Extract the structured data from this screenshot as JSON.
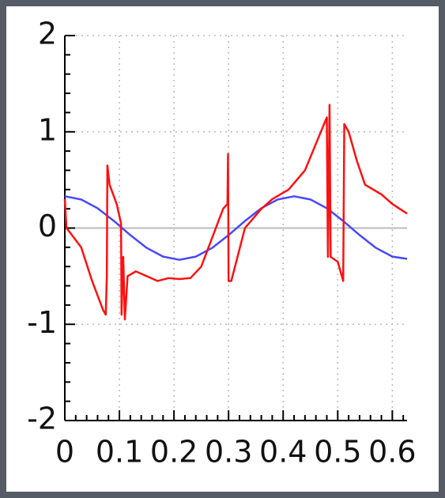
{
  "chart_data": {
    "type": "line",
    "xlim": [
      0,
      0.627
    ],
    "ylim": [
      -2,
      2
    ],
    "xticks": [
      0,
      0.1,
      0.2,
      0.3,
      0.4,
      0.5,
      0.6
    ],
    "yticks": [
      -2,
      -1,
      0,
      1,
      2
    ],
    "grid": true,
    "series": [
      {
        "color": "#4848ff",
        "x": [
          0,
          0.03,
          0.06,
          0.09,
          0.12,
          0.15,
          0.18,
          0.21,
          0.24,
          0.27,
          0.3,
          0.33,
          0.36,
          0.39,
          0.42,
          0.45,
          0.48,
          0.51,
          0.54,
          0.57,
          0.6,
          0.627
        ],
        "values": [
          0.33,
          0.297,
          0.206,
          0.073,
          -0.073,
          -0.206,
          -0.297,
          -0.33,
          -0.297,
          -0.206,
          -0.073,
          0.073,
          0.206,
          0.297,
          0.33,
          0.297,
          0.206,
          0.073,
          -0.073,
          -0.206,
          -0.297,
          -0.32
        ]
      },
      {
        "color": "#ff1010",
        "x": [
          0,
          0.003,
          0.01,
          0.03,
          0.05,
          0.07,
          0.075,
          0.077,
          0.078,
          0.082,
          0.095,
          0.103,
          0.104,
          0.107,
          0.11,
          0.115,
          0.13,
          0.15,
          0.17,
          0.19,
          0.21,
          0.23,
          0.25,
          0.27,
          0.29,
          0.298,
          0.299,
          0.3,
          0.305,
          0.33,
          0.36,
          0.38,
          0.41,
          0.44,
          0.48,
          0.482,
          0.485,
          0.487,
          0.5,
          0.51,
          0.512,
          0.52,
          0.535,
          0.55,
          0.58,
          0.6,
          0.627
        ],
        "values": [
          0.3,
          0.0,
          -0.05,
          -0.2,
          -0.55,
          -0.85,
          -0.9,
          -0.5,
          0.65,
          0.45,
          0.25,
          0.05,
          -0.9,
          -0.3,
          -0.95,
          -0.5,
          -0.45,
          -0.5,
          -0.55,
          -0.52,
          -0.53,
          -0.52,
          -0.4,
          -0.1,
          0.2,
          0.25,
          0.77,
          -0.55,
          -0.55,
          0.0,
          0.2,
          0.3,
          0.4,
          0.6,
          1.15,
          -0.3,
          1.28,
          -0.3,
          -0.35,
          -0.55,
          1.08,
          1.0,
          0.7,
          0.45,
          0.35,
          0.25,
          0.15
        ]
      }
    ]
  }
}
